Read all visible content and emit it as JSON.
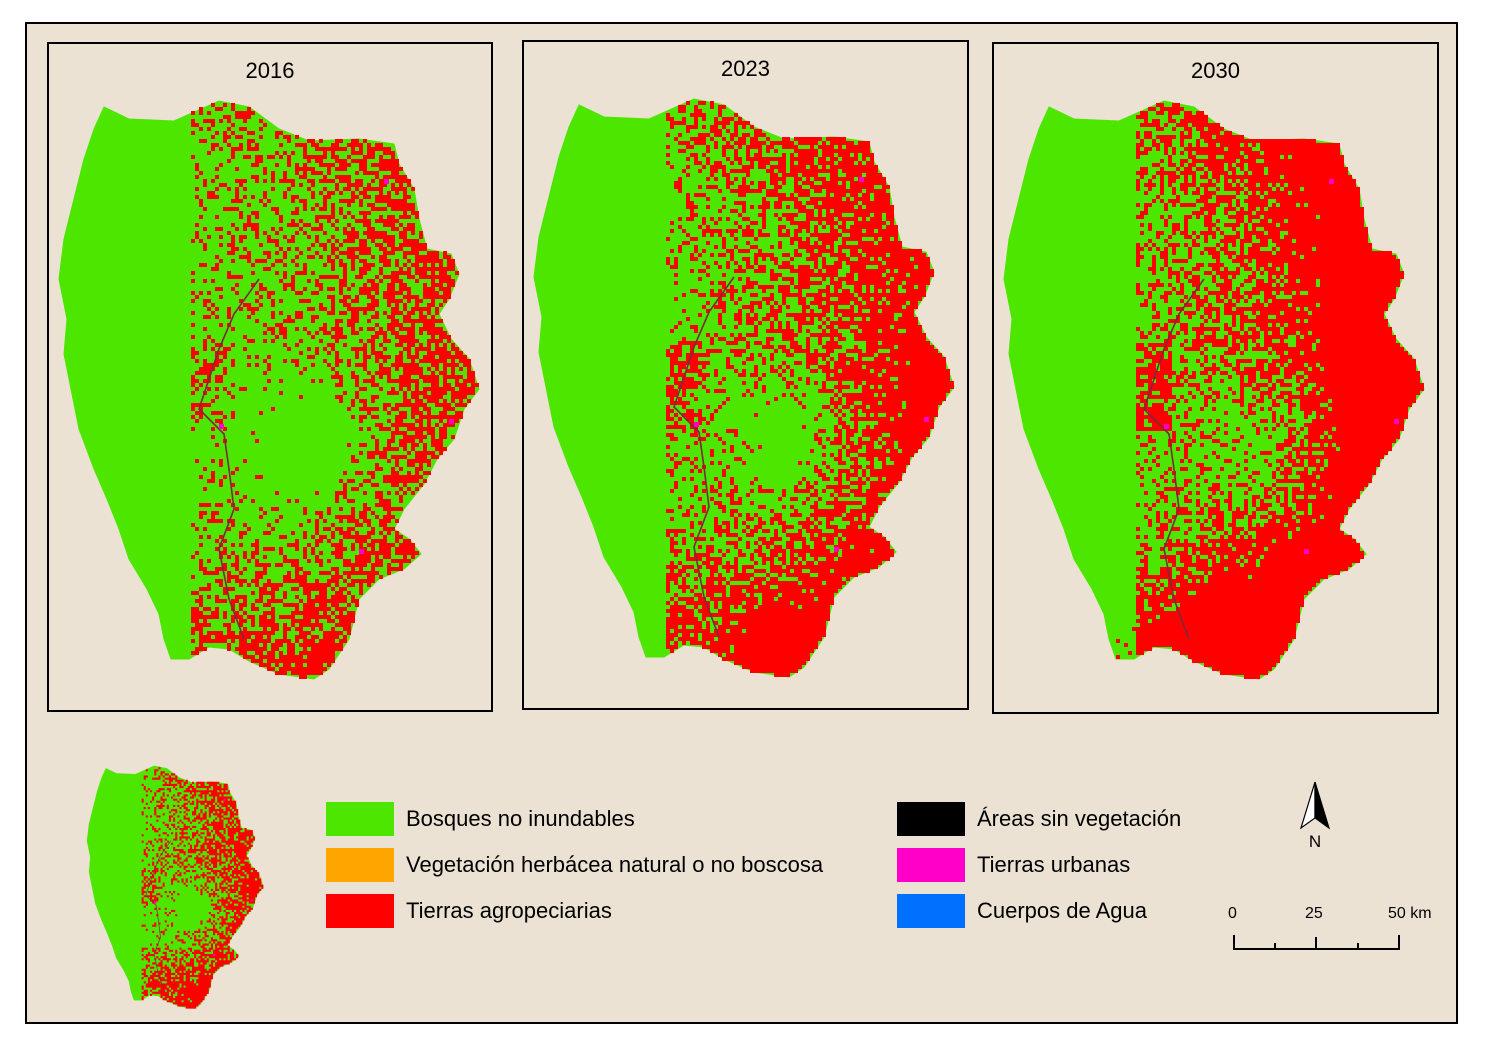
{
  "maps": [
    {
      "year": "2016",
      "agri_density": 0.3
    },
    {
      "year": "2023",
      "agri_density": 0.42
    },
    {
      "year": "2030",
      "agri_density": 0.56
    }
  ],
  "legend": [
    {
      "label": "Bosques no inundables",
      "color": "#4de600"
    },
    {
      "label": "Vegetación herbácea natural o no boscosa",
      "color": "#ffa500"
    },
    {
      "label": "Tierras agropeciarias",
      "color": "#ff0000"
    },
    {
      "label": "Áreas sin vegetación",
      "color": "#000000"
    },
    {
      "label": "Tierras urbanas",
      "color": "#ff00c8"
    },
    {
      "label": "Cuerpos de Agua",
      "color": "#0070ff"
    }
  ],
  "north_arrow": {
    "letter": "N"
  },
  "scale_bar": {
    "labels": [
      "0",
      "25",
      "50 km"
    ]
  },
  "colors": {
    "background": "#ece2d3",
    "forest": "#4de600",
    "agri": "#ff0000",
    "urban": "#ff00c8",
    "water": "#0070ff"
  }
}
